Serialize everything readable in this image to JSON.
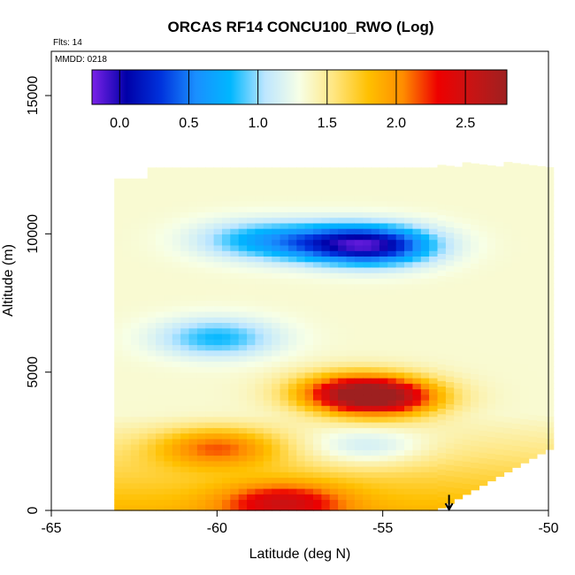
{
  "chart_data": {
    "type": "heatmap",
    "title": "ORCAS RF14 CONCU100_RWO (Log)",
    "annotations": {
      "flights": "Flts: 14",
      "date": "MMDD: 0218"
    },
    "xlabel": "Latitude (deg N)",
    "ylabel": "Altitude (m)",
    "xlim": [
      -65,
      -50
    ],
    "ylim": [
      0,
      16600
    ],
    "x_ticks": [
      -65,
      -60,
      -55,
      -50
    ],
    "x_tick_labels": [
      "-65",
      "-60",
      "-55",
      "-50"
    ],
    "y_ticks": [
      0,
      5000,
      10000,
      15000
    ],
    "y_tick_labels": [
      "0",
      "5000",
      "10000",
      "15000"
    ],
    "colorbar": {
      "range": [
        -0.2,
        2.8
      ],
      "ticks": [
        0.0,
        0.5,
        1.0,
        1.5,
        2.0,
        2.5
      ],
      "tick_labels": [
        "0.0",
        "0.5",
        "1.0",
        "1.5",
        "2.0",
        "2.5"
      ],
      "colors": [
        "#7b22e8",
        "#0000a8",
        "#0033dd",
        "#1a8fff",
        "#00b7ff",
        "#bde6ff",
        "#f7ffe6",
        "#ffe680",
        "#ffc000",
        "#ff8c00",
        "#ee0000",
        "#c81414",
        "#9e2020"
      ]
    },
    "data_domain": {
      "lat_range": [
        -63.1,
        -50
      ],
      "alt_range": [
        0,
        12400
      ],
      "grid_lat_step": 0.25,
      "grid_alt_step": 200
    },
    "features": [
      {
        "lat": -55.2,
        "alt": 9600,
        "value": 0.0
      },
      {
        "lat": -57.0,
        "alt": 9700,
        "value": 0.65
      },
      {
        "lat": -59.0,
        "alt": 9800,
        "value": 0.85
      },
      {
        "lat": -60.0,
        "alt": 6250,
        "value": 0.75
      },
      {
        "lat": -55.0,
        "alt": 4100,
        "value": 2.6
      },
      {
        "lat": -56.0,
        "alt": 4300,
        "value": 2.25
      },
      {
        "lat": -60.0,
        "alt": 2300,
        "value": 2.05
      },
      {
        "lat": -58.0,
        "alt": 300,
        "value": 2.15
      },
      {
        "lat": -55.5,
        "alt": 2300,
        "value": 0.95
      }
    ],
    "marker": {
      "lat": -53.0,
      "alt": 500,
      "symbol": "down-arrow"
    }
  }
}
